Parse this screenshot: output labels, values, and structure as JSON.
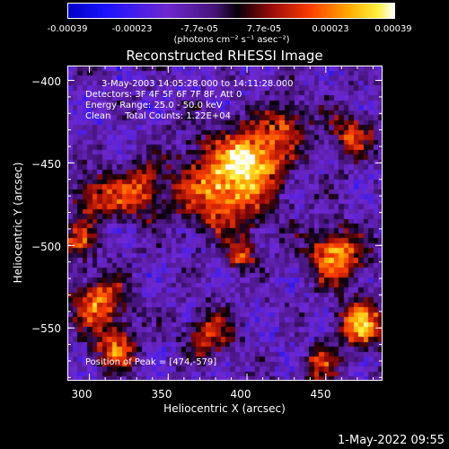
{
  "colorbar": {
    "ticks": [
      "-0.00039",
      "-0.00023",
      "-7.7e-05",
      "7.7e-05",
      "0.00023",
      "0.00039"
    ],
    "unit": "(photons cm⁻² s⁻¹ asec⁻²)",
    "range": [
      -0.00039,
      0.00039
    ]
  },
  "chart_data": {
    "type": "heatmap",
    "title": "Reconstructed RHESSI Image",
    "xlabel": "Heliocentric X (arcsec)",
    "ylabel": "Heliocentric Y (arcsec)",
    "xlim": [
      286,
      486
    ],
    "ylim": [
      -582,
      -391
    ],
    "xticks": [
      300,
      350,
      400,
      450
    ],
    "yticks": [
      -400,
      -450,
      -500,
      -550
    ],
    "xtick_labels": [
      "300",
      "350",
      "400",
      "450"
    ],
    "ytick_labels": [
      "−400",
      "−450",
      "−500",
      "−550"
    ],
    "annotations": [
      "3-May-2003 14:05:28.000 to 14:11:28.000",
      "Detectors: 3F 4F 5F 6F 7F 8F, Att 0",
      "Energy Range: 25.0 - 50.0 keV",
      "Clean     Total Counts: 1.22E+04"
    ],
    "peak_label": "Position of Peak = [474,-579]",
    "peak_position": [
      474,
      -579
    ],
    "colormap": "RHESSI blue-purple-red-yellow-white"
  },
  "footer": {
    "timestamp": "1-May-2022 09:55"
  }
}
